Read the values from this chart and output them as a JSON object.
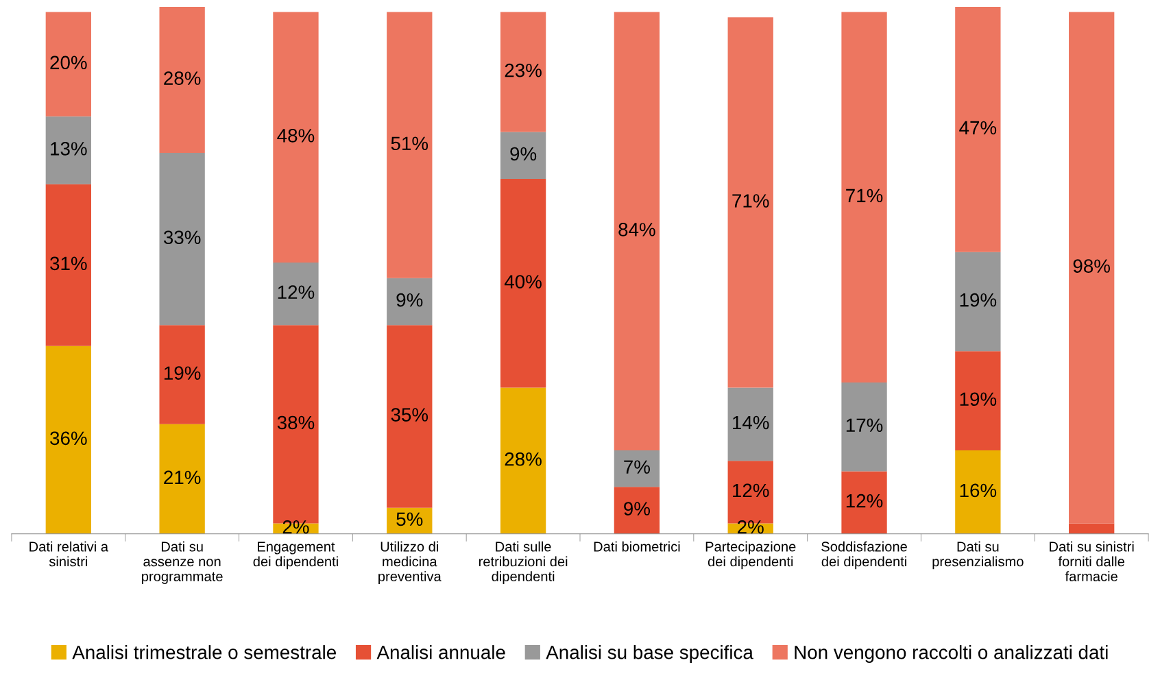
{
  "chart_data": {
    "type": "bar",
    "stacked": true,
    "legend": "bottom",
    "grid": false,
    "categories": [
      "Dati relativi a\nsinistri",
      "Dati su\nassenze non\nprogrammate",
      "Engagement\ndei dipendenti",
      "Utilizzo di\nmedicina\npreventiva",
      "Dati sulle\nretribuzioni dei\ndipendenti",
      "Dati biometrici",
      "Partecipazione\ndei dipendenti",
      "Soddisfazione\ndei dipendenti",
      "Dati su\npresenzialismo",
      "Dati su sinistri\nforniti dalle\nfarmacie"
    ],
    "series": [
      {
        "name": "Analisi trimestrale o semestrale",
        "color": "#ebb000",
        "values": [
          36,
          21,
          2,
          5,
          28,
          0,
          2,
          0,
          16,
          0
        ],
        "value_labels": [
          "36%",
          "21%",
          "2%",
          "5%",
          "28%",
          null,
          "2%",
          null,
          "16%",
          null
        ]
      },
      {
        "name": "Analisi annuale",
        "color": "#e65035",
        "values": [
          31,
          19,
          38,
          35,
          40,
          9,
          12,
          12,
          19,
          2
        ],
        "value_labels": [
          "31%",
          "19%",
          "38%",
          "35%",
          "40%",
          "9%",
          "12%",
          "12%",
          "19%",
          null
        ]
      },
      {
        "name": "Analisi su base specifica",
        "color": "#999999",
        "values": [
          13,
          33,
          12,
          9,
          9,
          7,
          14,
          17,
          19,
          0
        ],
        "value_labels": [
          "13%",
          "33%",
          "12%",
          "9%",
          "9%",
          "7%",
          "14%",
          "17%",
          "19%",
          null
        ]
      },
      {
        "name": "Non vengono raccolti o analizzati dati",
        "color": "#ed7660",
        "values": [
          20,
          28,
          48,
          51,
          23,
          84,
          71,
          71,
          47,
          98
        ],
        "value_labels": [
          "20%",
          "28%",
          "48%",
          "51%",
          "23%",
          "84%",
          "71%",
          "71%",
          "47%",
          "98%"
        ]
      }
    ]
  }
}
